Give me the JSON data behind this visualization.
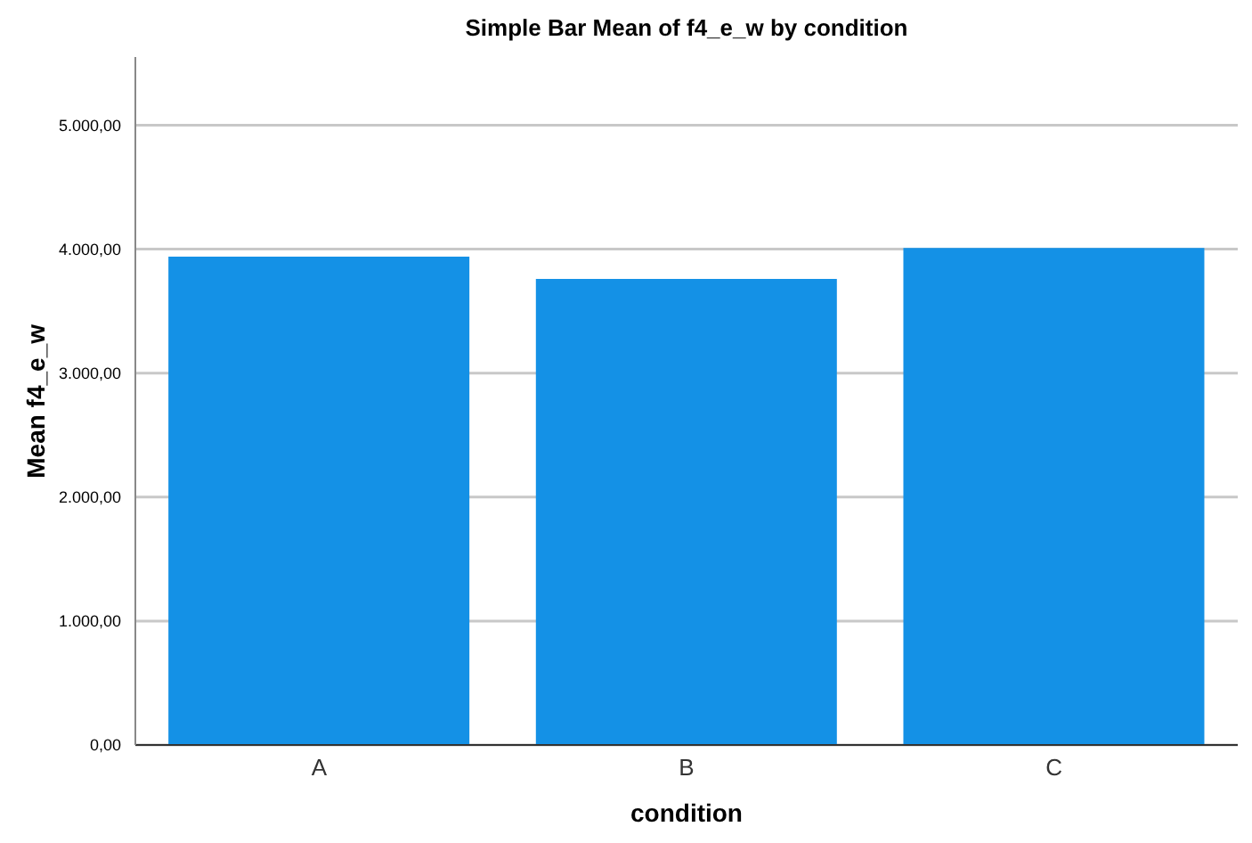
{
  "chart_data": {
    "type": "bar",
    "title": "Simple Bar Mean of f4_e_w by condition",
    "xlabel": "condition",
    "ylabel": "Mean f4_e_w",
    "categories": [
      "A",
      "B",
      "C"
    ],
    "values": [
      3940,
      3760,
      4010
    ],
    "color": "#1491e6",
    "ylim": [
      0,
      5550
    ],
    "yticks": [
      {
        "value": 0,
        "label": "0,00"
      },
      {
        "value": 1000,
        "label": "1.000,00"
      },
      {
        "value": 2000,
        "label": "2.000,00"
      },
      {
        "value": 3000,
        "label": "3.000,00"
      },
      {
        "value": 4000,
        "label": "4.000,00"
      },
      {
        "value": 5000,
        "label": "5.000,00"
      }
    ],
    "grid": "y"
  }
}
